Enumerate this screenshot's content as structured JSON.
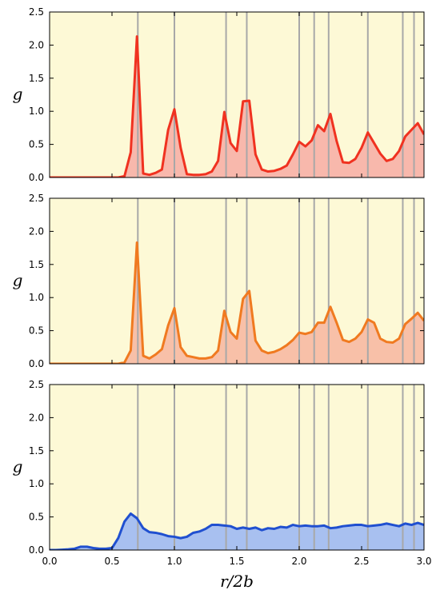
{
  "chart_data": [
    {
      "type": "area",
      "ylabel": "g",
      "x": [
        0,
        0.05,
        0.1,
        0.15,
        0.2,
        0.25,
        0.3,
        0.35,
        0.4,
        0.45,
        0.5,
        0.55,
        0.6,
        0.65,
        0.7,
        0.75,
        0.8,
        0.85,
        0.9,
        0.95,
        1,
        1.05,
        1.1,
        1.15,
        1.2,
        1.25,
        1.3,
        1.35,
        1.4,
        1.45,
        1.5,
        1.55,
        1.6,
        1.65,
        1.7,
        1.75,
        1.8,
        1.85,
        1.9,
        1.95,
        2,
        2.05,
        2.1,
        2.15,
        2.2,
        2.25,
        2.3,
        2.35,
        2.4,
        2.45,
        2.5,
        2.55,
        2.6,
        2.65,
        2.7,
        2.75,
        2.8,
        2.85,
        2.9,
        2.95,
        3
      ],
      "series": [
        {
          "color": "#f03220",
          "fill": "#f8b8ac",
          "values": [
            0,
            0,
            0,
            0,
            0,
            0,
            0,
            0,
            0,
            0,
            0,
            0,
            0.02,
            0.38,
            2.13,
            0.06,
            0.04,
            0.07,
            0.12,
            0.72,
            1.03,
            0.45,
            0.05,
            0.04,
            0.04,
            0.05,
            0.09,
            0.25,
            0.99,
            0.52,
            0.4,
            1.15,
            1.16,
            0.35,
            0.12,
            0.09,
            0.1,
            0.13,
            0.18,
            0.35,
            0.54,
            0.47,
            0.56,
            0.79,
            0.7,
            0.96,
            0.55,
            0.23,
            0.22,
            0.28,
            0.45,
            0.68,
            0.52,
            0.36,
            0.25,
            0.28,
            0.4,
            0.62,
            0.72,
            0.82,
            0.65
          ]
        }
      ],
      "vlines": [
        0.707,
        1,
        1.414,
        1.58,
        2,
        2.12,
        2.236,
        2.55,
        2.83,
        2.92
      ],
      "xlim": [
        0,
        3
      ],
      "xticks": [
        {
          "value": 0,
          "label": "0.0"
        },
        0.5,
        {
          "value": 1,
          "label": "1.0"
        },
        1.5,
        {
          "value": 2,
          "label": "2.0"
        },
        2.5,
        {
          "value": 3,
          "label": "3.0"
        }
      ],
      "ylim": [
        0,
        2.5
      ],
      "yticks": [
        {
          "value": 0,
          "label": "0.0"
        },
        0.5,
        {
          "value": 1,
          "label": "1.0"
        },
        1.5,
        {
          "value": 2,
          "label": "2.0"
        },
        2.5
      ]
    },
    {
      "type": "area",
      "ylabel": "g",
      "x": [
        0,
        0.05,
        0.1,
        0.15,
        0.2,
        0.25,
        0.3,
        0.35,
        0.4,
        0.45,
        0.5,
        0.55,
        0.6,
        0.65,
        0.7,
        0.75,
        0.8,
        0.85,
        0.9,
        0.95,
        1,
        1.05,
        1.1,
        1.15,
        1.2,
        1.25,
        1.3,
        1.35,
        1.4,
        1.45,
        1.5,
        1.55,
        1.6,
        1.65,
        1.7,
        1.75,
        1.8,
        1.85,
        1.9,
        1.95,
        2,
        2.05,
        2.1,
        2.15,
        2.2,
        2.25,
        2.3,
        2.35,
        2.4,
        2.45,
        2.5,
        2.55,
        2.6,
        2.65,
        2.7,
        2.75,
        2.8,
        2.85,
        2.9,
        2.95,
        3
      ],
      "series": [
        {
          "color": "#f07a20",
          "fill": "#f8c0a8",
          "values": [
            0,
            0,
            0,
            0,
            0,
            0,
            0,
            0,
            0,
            0,
            0,
            0,
            0.02,
            0.2,
            1.83,
            0.12,
            0.08,
            0.14,
            0.22,
            0.58,
            0.84,
            0.25,
            0.12,
            0.1,
            0.08,
            0.08,
            0.1,
            0.2,
            0.8,
            0.48,
            0.38,
            0.98,
            1.1,
            0.35,
            0.2,
            0.16,
            0.18,
            0.22,
            0.28,
            0.36,
            0.47,
            0.45,
            0.48,
            0.62,
            0.62,
            0.86,
            0.62,
            0.36,
            0.33,
            0.38,
            0.48,
            0.67,
            0.62,
            0.38,
            0.33,
            0.32,
            0.38,
            0.6,
            0.68,
            0.77,
            0.65
          ]
        }
      ],
      "vlines": [
        0.707,
        1,
        1.414,
        1.58,
        2,
        2.12,
        2.236,
        2.55,
        2.83,
        2.92
      ],
      "xlim": [
        0,
        3
      ],
      "xticks": [
        {
          "value": 0,
          "label": "0.0"
        },
        0.5,
        {
          "value": 1,
          "label": "1.0"
        },
        1.5,
        {
          "value": 2,
          "label": "2.0"
        },
        2.5,
        {
          "value": 3,
          "label": "3.0"
        }
      ],
      "ylim": [
        0,
        2.5
      ],
      "yticks": [
        {
          "value": 0,
          "label": "0.0"
        },
        0.5,
        {
          "value": 1,
          "label": "1.0"
        },
        1.5,
        {
          "value": 2,
          "label": "2.0"
        },
        2.5
      ]
    },
    {
      "type": "area",
      "ylabel": "g",
      "xlabel": "r/2b",
      "x": [
        0,
        0.05,
        0.1,
        0.15,
        0.2,
        0.25,
        0.3,
        0.35,
        0.4,
        0.45,
        0.5,
        0.55,
        0.6,
        0.65,
        0.7,
        0.75,
        0.8,
        0.85,
        0.9,
        0.95,
        1,
        1.05,
        1.1,
        1.15,
        1.2,
        1.25,
        1.3,
        1.35,
        1.4,
        1.45,
        1.5,
        1.55,
        1.6,
        1.65,
        1.7,
        1.75,
        1.8,
        1.85,
        1.9,
        1.95,
        2,
        2.05,
        2.1,
        2.15,
        2.2,
        2.25,
        2.3,
        2.35,
        2.4,
        2.45,
        2.5,
        2.55,
        2.6,
        2.65,
        2.7,
        2.75,
        2.8,
        2.85,
        2.9,
        2.95,
        3
      ],
      "series": [
        {
          "color": "#2050d0",
          "fill": "#a8c0f0",
          "values": [
            0,
            0,
            0.005,
            0.01,
            0.02,
            0.05,
            0.05,
            0.03,
            0.02,
            0.02,
            0.03,
            0.18,
            0.43,
            0.55,
            0.48,
            0.33,
            0.27,
            0.26,
            0.24,
            0.21,
            0.2,
            0.18,
            0.2,
            0.26,
            0.28,
            0.32,
            0.38,
            0.38,
            0.37,
            0.36,
            0.32,
            0.34,
            0.32,
            0.34,
            0.3,
            0.33,
            0.32,
            0.35,
            0.34,
            0.38,
            0.36,
            0.37,
            0.36,
            0.36,
            0.37,
            0.33,
            0.34,
            0.36,
            0.37,
            0.38,
            0.38,
            0.36,
            0.37,
            0.38,
            0.4,
            0.38,
            0.36,
            0.4,
            0.38,
            0.41,
            0.38
          ]
        }
      ],
      "vlines": [
        0.707,
        1,
        1.414,
        1.58,
        2,
        2.12,
        2.236,
        2.55,
        2.83,
        2.92
      ],
      "xlim": [
        0,
        3
      ],
      "xticks": [
        {
          "value": 0,
          "label": "0.0"
        },
        0.5,
        {
          "value": 1,
          "label": "1.0"
        },
        1.5,
        {
          "value": 2,
          "label": "2.0"
        },
        2.5,
        {
          "value": 3,
          "label": "3.0"
        }
      ],
      "ylim": [
        0,
        2.5
      ],
      "yticks": [
        {
          "value": 0,
          "label": "0.0"
        },
        0.5,
        {
          "value": 1,
          "label": "1.0"
        },
        1.5,
        {
          "value": 2,
          "label": "2.0"
        },
        2.5
      ]
    }
  ]
}
